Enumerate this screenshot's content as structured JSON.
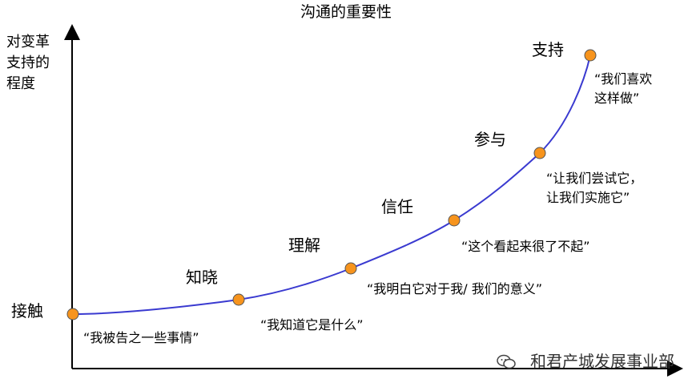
{
  "title": "沟通的重要性",
  "y_axis_label": "对变革\n支持的\n程度",
  "stages": [
    {
      "name": "接触",
      "quote": "“我被告之一些事情”"
    },
    {
      "name": "知晓",
      "quote": "“我知道它是什么”"
    },
    {
      "name": "理解",
      "quote": "“我明白它对于我/ 我们的意义”"
    },
    {
      "name": "信任",
      "quote": "“这个看起来很了不起”"
    },
    {
      "name": "参与",
      "quote": "“让我们尝试它，\n让我们实施它”"
    },
    {
      "name": "支持",
      "quote": "“我们喜欢\n这样做”"
    }
  ],
  "watermark": "和君产城发展事业部",
  "colors": {
    "curve": "#3a3ad0",
    "point": "#f7941d",
    "axis": "#000000"
  }
}
